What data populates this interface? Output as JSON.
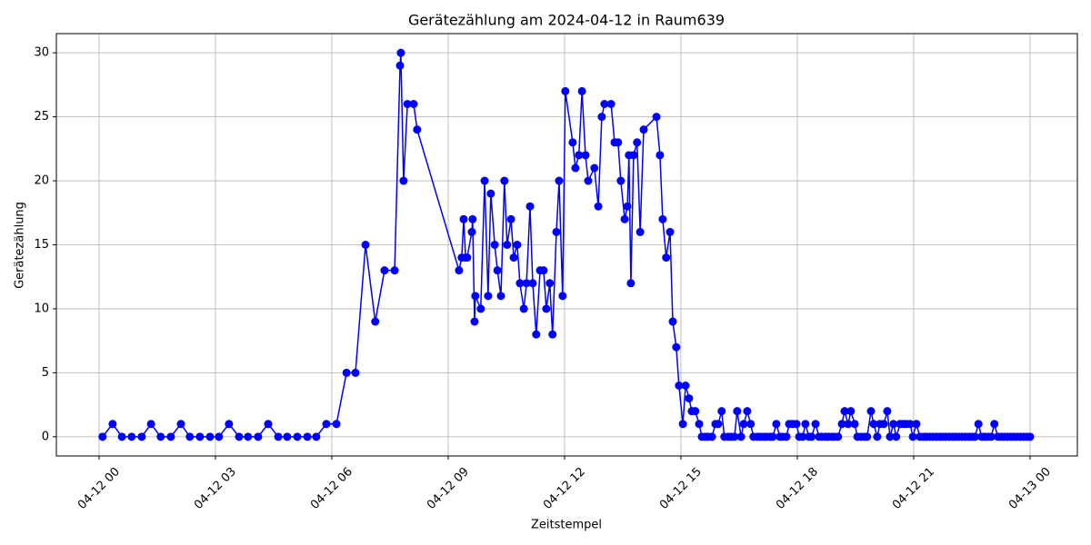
{
  "chart_data": {
    "type": "line",
    "title": "Gerätezählung am 2024-04-12 in Raum639",
    "x_label": "Zeitstempel",
    "y_label": "Gerätezählung",
    "color": "#0000ff",
    "grid": true,
    "x": [
      0.09,
      0.35,
      0.59,
      0.84,
      1.1,
      1.34,
      1.59,
      1.85,
      2.11,
      2.34,
      2.6,
      2.86,
      3.09,
      3.35,
      3.61,
      3.84,
      4.1,
      4.36,
      4.62,
      4.85,
      5.11,
      5.37,
      5.6,
      5.86,
      6.12,
      6.38,
      6.61,
      6.87,
      7.12,
      7.36,
      7.62,
      7.76,
      7.78,
      7.85,
      7.95,
      8.11,
      8.2,
      9.28,
      9.35,
      9.4,
      9.45,
      9.49,
      9.61,
      9.63,
      9.68,
      9.7,
      9.84,
      9.94,
      10.03,
      10.1,
      10.2,
      10.27,
      10.36,
      10.45,
      10.52,
      10.62,
      10.69,
      10.78,
      10.85,
      10.95,
      11.02,
      11.11,
      11.18,
      11.27,
      11.37,
      11.46,
      11.53,
      11.62,
      11.69,
      11.79,
      11.86,
      11.95,
      12.02,
      12.21,
      12.28,
      12.37,
      12.45,
      12.54,
      12.61,
      12.77,
      12.87,
      12.96,
      13.03,
      13.2,
      13.29,
      13.38,
      13.45,
      13.55,
      13.62,
      13.66,
      13.71,
      13.78,
      13.87,
      13.95,
      14.04,
      14.37,
      14.46,
      14.53,
      14.62,
      14.72,
      14.79,
      14.88,
      14.95,
      15.05,
      15.12,
      15.21,
      15.28,
      15.37,
      15.47,
      15.54,
      15.63,
      15.7,
      15.8,
      15.89,
      15.96,
      16.05,
      16.12,
      16.22,
      16.29,
      16.38,
      16.45,
      16.55,
      16.62,
      16.71,
      16.8,
      16.87,
      16.97,
      17.04,
      17.13,
      17.2,
      17.3,
      17.37,
      17.46,
      17.55,
      17.62,
      17.72,
      17.79,
      17.88,
      17.98,
      18.05,
      18.14,
      18.21,
      18.3,
      18.37,
      18.47,
      18.56,
      18.63,
      18.73,
      18.8,
      18.89,
      18.96,
      19.05,
      19.15,
      19.22,
      19.31,
      19.38,
      19.48,
      19.55,
      19.64,
      19.73,
      19.8,
      19.9,
      19.97,
      20.06,
      20.13,
      20.23,
      20.32,
      20.39,
      20.48,
      20.55,
      20.65,
      20.74,
      20.81,
      20.91,
      20.98,
      21.07,
      21.16,
      21.25,
      21.33,
      21.42,
      21.5,
      21.58,
      21.67,
      21.75,
      21.83,
      21.92,
      22.0,
      22.08,
      22.17,
      22.25,
      22.33,
      22.42,
      22.5,
      22.58,
      22.67,
      22.75,
      22.83,
      22.92,
      23.0,
      23.08,
      23.17,
      23.25,
      23.33,
      23.42,
      23.5,
      23.58,
      23.67,
      23.75,
      23.83,
      23.92,
      24.0
    ],
    "values": [
      0,
      1,
      0,
      0,
      0,
      1,
      0,
      0,
      1,
      0,
      0,
      0,
      0,
      1,
      0,
      0,
      0,
      1,
      0,
      0,
      0,
      0,
      0,
      1,
      1,
      5,
      5,
      15,
      9,
      13,
      13,
      29,
      30,
      20,
      26,
      26,
      24,
      13,
      14,
      17,
      14,
      14,
      16,
      17,
      9,
      11,
      10,
      20,
      11,
      19,
      15,
      13,
      11,
      20,
      15,
      17,
      14,
      15,
      12,
      10,
      12,
      18,
      12,
      8,
      13,
      13,
      10,
      12,
      8,
      16,
      20,
      11,
      27,
      23,
      21,
      22,
      27,
      22,
      20,
      21,
      18,
      25,
      26,
      26,
      23,
      23,
      20,
      17,
      18,
      22,
      12,
      22,
      23,
      16,
      24,
      25,
      22,
      17,
      14,
      16,
      9,
      7,
      4,
      1,
      4,
      3,
      2,
      2,
      1,
      0,
      0,
      0,
      0,
      1,
      1,
      2,
      0,
      0,
      0,
      0,
      2,
      0,
      1,
      2,
      1,
      0,
      0,
      0,
      0,
      0,
      0,
      0,
      1,
      0,
      0,
      0,
      1,
      1,
      1,
      0,
      0,
      1,
      0,
      0,
      1,
      0,
      0,
      0,
      0,
      0,
      0,
      0,
      1,
      2,
      1,
      2,
      1,
      0,
      0,
      0,
      0,
      2,
      1,
      0,
      1,
      1,
      2,
      0,
      1,
      0,
      1,
      1,
      1,
      1,
      0,
      1,
      0,
      0,
      0,
      0,
      0,
      0,
      0,
      0,
      0,
      0,
      0,
      0,
      0,
      0,
      0,
      0,
      0,
      0,
      1,
      0,
      0,
      0,
      0,
      1,
      0,
      0,
      0,
      0,
      0,
      0,
      0,
      0,
      0,
      0,
      0
    ],
    "xlim": [
      -1.1,
      25.22
    ],
    "xticks": [
      {
        "value": 0,
        "label": "04-12 00"
      },
      {
        "value": 3,
        "label": "04-12 03"
      },
      {
        "value": 6,
        "label": "04-12 06"
      },
      {
        "value": 9,
        "label": "04-12 09"
      },
      {
        "value": 12,
        "label": "04-12 12"
      },
      {
        "value": 15,
        "label": "04-12 15"
      },
      {
        "value": 18,
        "label": "04-12 18"
      },
      {
        "value": 21,
        "label": "04-12 21"
      },
      {
        "value": 24,
        "label": "04-13 00"
      }
    ],
    "ylim": [
      -1.5,
      31.5
    ],
    "yticks": [
      0,
      5,
      10,
      15,
      20,
      25,
      30
    ]
  }
}
